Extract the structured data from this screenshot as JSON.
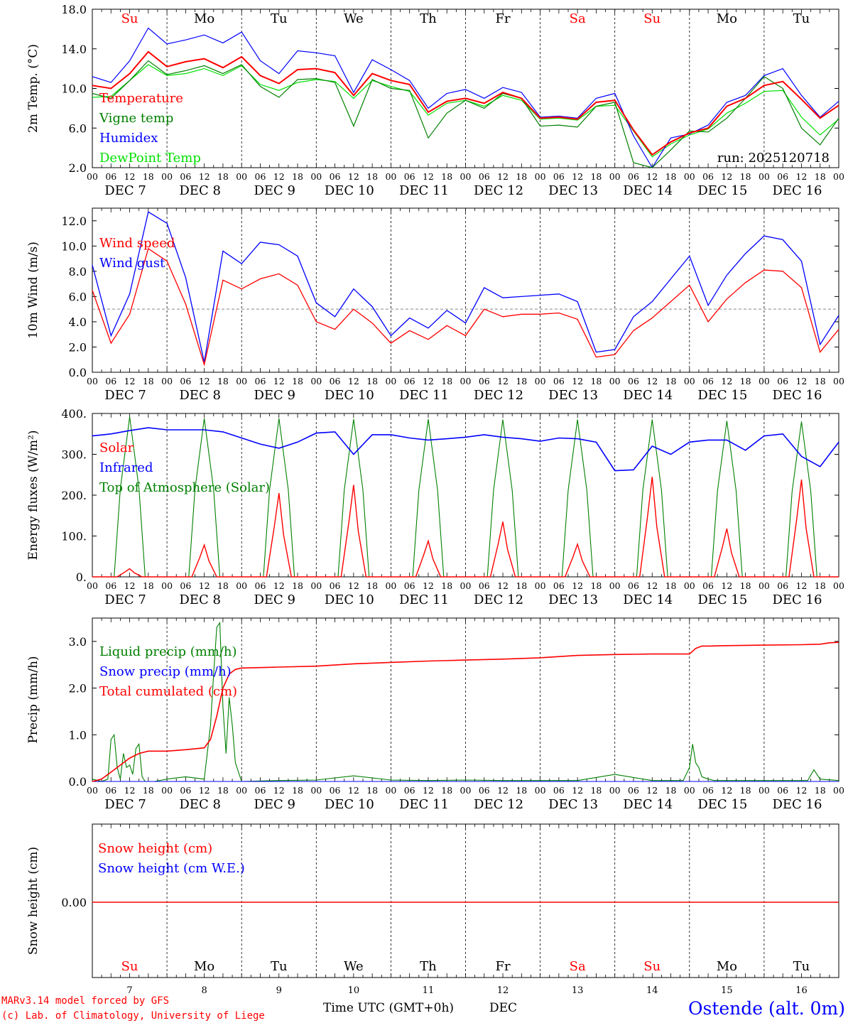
{
  "footer": {
    "model_line": "MARv3.14 model forced by GFS",
    "copyright_line": "(c) Lab. of Climatology, University of Liege",
    "xlabel": "Time UTC (GMT+0h)",
    "month": "DEC",
    "station": "Ostende (alt. 0m)"
  },
  "run_label": "run: 2025120718",
  "axis": {
    "hour_ticks": [
      "00",
      "06",
      "12",
      "18"
    ],
    "days": [
      {
        "label": "DEC  7",
        "abbr": "Su",
        "num": "7",
        "weekend": true
      },
      {
        "label": "DEC  8",
        "abbr": "Mo",
        "num": "8",
        "weekend": false
      },
      {
        "label": "DEC  9",
        "abbr": "Tu",
        "num": "9",
        "weekend": false
      },
      {
        "label": "DEC 10",
        "abbr": "We",
        "num": "10",
        "weekend": false
      },
      {
        "label": "DEC 11",
        "abbr": "Th",
        "num": "11",
        "weekend": false
      },
      {
        "label": "DEC 12",
        "abbr": "Fr",
        "num": "12",
        "weekend": false
      },
      {
        "label": "DEC 13",
        "abbr": "Sa",
        "num": "13",
        "weekend": true
      },
      {
        "label": "DEC 14",
        "abbr": "Su",
        "num": "14",
        "weekend": true
      },
      {
        "label": "DEC 15",
        "abbr": "Mo",
        "num": "15",
        "weekend": false
      },
      {
        "label": "DEC 16",
        "abbr": "Tu",
        "num": "16",
        "weekend": false
      }
    ],
    "weekend_color": "#ff0000",
    "weekday_color": "#000000"
  },
  "chart_data": [
    {
      "id": "temp",
      "type": "line",
      "ylabel": "2m Temp. (°C)",
      "ylim": [
        2,
        18
      ],
      "yticks": [
        "2.0",
        "6.0",
        "10.0",
        "14.0",
        "18.0"
      ],
      "x_hours": [
        0,
        6,
        12,
        18,
        24,
        30,
        36,
        42,
        48,
        54,
        60,
        66,
        72,
        78,
        84,
        90,
        96,
        102,
        108,
        114,
        120,
        126,
        132,
        138,
        144,
        150,
        156,
        162,
        168,
        174,
        180,
        186,
        192,
        198,
        204,
        210,
        216,
        222,
        228,
        234,
        240
      ],
      "series": [
        {
          "name": "Temperature",
          "color": "#ff0000",
          "values": [
            10.3,
            10.0,
            11.5,
            13.7,
            12.2,
            12.7,
            13.0,
            12.1,
            13.2,
            11.3,
            10.5,
            11.9,
            12.0,
            11.6,
            9.3,
            11.5,
            10.8,
            10.4,
            7.6,
            8.7,
            9.0,
            8.5,
            9.6,
            9.0,
            7.0,
            7.1,
            6.9,
            8.6,
            8.8,
            5.8,
            3.3,
            4.6,
            5.5,
            6.0,
            8.2,
            9.0,
            10.3,
            10.7,
            8.9,
            7.0,
            8.3
          ]
        },
        {
          "name": "Vigne temp",
          "color": "#008000",
          "values": [
            9.5,
            9.0,
            10.8,
            12.8,
            11.4,
            11.8,
            12.3,
            11.5,
            12.4,
            10.2,
            9.1,
            10.9,
            11.0,
            10.6,
            6.2,
            10.9,
            10.0,
            9.8,
            5.0,
            7.5,
            8.8,
            8.0,
            9.5,
            9.0,
            6.2,
            6.3,
            6.1,
            8.2,
            8.6,
            2.5,
            2.0,
            3.8,
            5.7,
            5.6,
            7.0,
            9.0,
            11.2,
            10.0,
            6.0,
            4.3,
            7.0
          ]
        },
        {
          "name": "Humidex",
          "color": "#0000ff",
          "values": [
            11.2,
            10.6,
            12.8,
            16.1,
            14.5,
            14.9,
            15.4,
            14.6,
            15.7,
            12.8,
            11.5,
            13.8,
            13.6,
            13.3,
            9.6,
            12.9,
            11.9,
            10.8,
            8.0,
            9.5,
            9.9,
            9.0,
            10.1,
            9.6,
            7.1,
            7.2,
            7.0,
            9.0,
            9.5,
            5.2,
            2.0,
            5.0,
            5.4,
            6.3,
            8.6,
            9.3,
            11.3,
            12.0,
            9.3,
            7.1,
            8.7
          ]
        },
        {
          "name": "DewPoint Temp",
          "color": "#00e000",
          "values": [
            9.1,
            9.2,
            10.8,
            12.4,
            11.3,
            11.5,
            12.0,
            11.3,
            12.3,
            10.4,
            9.8,
            10.6,
            10.9,
            10.7,
            9.0,
            10.8,
            10.2,
            9.7,
            7.3,
            8.5,
            8.8,
            8.2,
            9.3,
            8.8,
            6.9,
            7.0,
            6.8,
            8.2,
            8.3,
            5.7,
            3.1,
            4.4,
            5.3,
            5.9,
            7.5,
            8.5,
            9.7,
            9.8,
            7.1,
            5.3,
            6.9
          ]
        }
      ]
    },
    {
      "id": "wind",
      "type": "line",
      "ylabel": "10m Wind (m/s)",
      "ylim": [
        0,
        13
      ],
      "yticks": [
        "0.0",
        "2.0",
        "4.0",
        "6.0",
        "8.0",
        "10.0",
        "12.0"
      ],
      "reference_line": 5,
      "x_hours": [
        0,
        6,
        12,
        18,
        24,
        30,
        36,
        42,
        48,
        54,
        60,
        66,
        72,
        78,
        84,
        90,
        96,
        102,
        108,
        114,
        120,
        126,
        132,
        138,
        144,
        150,
        156,
        162,
        168,
        174,
        180,
        186,
        192,
        198,
        204,
        210,
        216,
        222,
        228,
        234,
        240
      ],
      "series": [
        {
          "name": "Wind speed",
          "color": "#ff0000",
          "values": [
            6.5,
            2.3,
            4.6,
            9.8,
            8.8,
            5.4,
            0.6,
            7.3,
            6.6,
            7.4,
            7.8,
            6.9,
            4.0,
            3.4,
            5.0,
            3.9,
            2.3,
            3.3,
            2.6,
            3.7,
            2.9,
            5.0,
            4.4,
            4.6,
            4.6,
            4.7,
            4.2,
            1.2,
            1.4,
            3.3,
            4.3,
            5.6,
            6.9,
            4.0,
            5.8,
            7.1,
            8.1,
            8.0,
            6.7,
            1.6,
            3.4
          ]
        },
        {
          "name": "Wind gust",
          "color": "#0000ff",
          "values": [
            8.5,
            2.9,
            6.2,
            12.7,
            11.8,
            7.5,
            0.8,
            9.6,
            8.6,
            10.3,
            10.1,
            9.2,
            5.5,
            4.4,
            6.6,
            5.2,
            2.9,
            4.3,
            3.5,
            4.9,
            3.9,
            6.7,
            5.9,
            6.0,
            6.1,
            6.2,
            5.6,
            1.6,
            1.8,
            4.4,
            5.6,
            7.4,
            9.2,
            5.3,
            7.7,
            9.4,
            10.8,
            10.5,
            8.8,
            2.2,
            4.5
          ]
        }
      ]
    },
    {
      "id": "energy",
      "type": "line",
      "ylabel": "Energy fluxes (W/m²)",
      "ylim": [
        0,
        400
      ],
      "yticks": [
        "0.",
        "100.",
        "200.",
        "300.",
        "400."
      ],
      "daily_peaks": {
        "solar": [
          20,
          78,
          205,
          225,
          88,
          135,
          80,
          245,
          118,
          238
        ],
        "toa_solar": [
          392,
          388,
          388,
          386,
          386,
          385,
          385,
          385,
          382,
          380
        ]
      },
      "infrared_hours": [
        0,
        6,
        12,
        18,
        24,
        30,
        36,
        42,
        48,
        54,
        60,
        66,
        72,
        78,
        84,
        90,
        96,
        102,
        108,
        114,
        120,
        126,
        132,
        138,
        144,
        150,
        156,
        162,
        168,
        174,
        180,
        186,
        192,
        198,
        204,
        210,
        216,
        222,
        228,
        234,
        240
      ],
      "infrared_values": [
        345,
        350,
        358,
        365,
        360,
        360,
        360,
        355,
        340,
        325,
        315,
        330,
        352,
        355,
        300,
        348,
        348,
        340,
        335,
        338,
        342,
        348,
        342,
        338,
        332,
        340,
        338,
        330,
        260,
        262,
        320,
        300,
        330,
        335,
        335,
        310,
        345,
        350,
        295,
        270,
        330
      ],
      "series": [
        {
          "name": "Solar",
          "color": "#ff0000"
        },
        {
          "name": "Infrared",
          "color": "#0000ff"
        },
        {
          "name": "Top of Atmosphere (Solar)",
          "color": "#008000"
        }
      ]
    },
    {
      "id": "precip",
      "type": "line",
      "ylabel": "Precip (mm/h)",
      "ylim": [
        0,
        3.5
      ],
      "yticks": [
        "0.0",
        "1.0",
        "2.0",
        "3.0"
      ],
      "liquid_hours": [
        0,
        3,
        5,
        6,
        7,
        8,
        9,
        10,
        11,
        12,
        13,
        14,
        15,
        16,
        17,
        18,
        20,
        24,
        30,
        36,
        38,
        39,
        40,
        41,
        42,
        43,
        44,
        45,
        46,
        48,
        60,
        72,
        84,
        96,
        108,
        120,
        132,
        144,
        156,
        168,
        180,
        190,
        192,
        193,
        194,
        195,
        196,
        198,
        200,
        210,
        220,
        230,
        232,
        234,
        240
      ],
      "liquid_values": [
        0.05,
        0,
        0.05,
        0.9,
        1.0,
        0.3,
        0.05,
        0.6,
        0.3,
        0.35,
        0.15,
        0.7,
        0.8,
        0.1,
        0,
        0,
        0,
        0.05,
        0.1,
        0.05,
        1.2,
        2.3,
        3.3,
        3.4,
        1.6,
        0.6,
        1.8,
        1.2,
        0.4,
        0,
        0.02,
        0.03,
        0.12,
        0.03,
        0.02,
        0.03,
        0.02,
        0.02,
        0.02,
        0.15,
        0.02,
        0.02,
        0.3,
        0.8,
        0.4,
        0.3,
        0.1,
        0.05,
        0.02,
        0.02,
        0.02,
        0.02,
        0.25,
        0.05,
        0.02
      ],
      "cum_hours": [
        0,
        3,
        6,
        9,
        12,
        15,
        18,
        24,
        30,
        36,
        38,
        40,
        42,
        44,
        46,
        48,
        60,
        72,
        84,
        96,
        108,
        120,
        132,
        144,
        156,
        168,
        180,
        192,
        194,
        196,
        198,
        204,
        216,
        228,
        234,
        237,
        240
      ],
      "cum_values": [
        0,
        0.05,
        0.2,
        0.35,
        0.5,
        0.6,
        0.65,
        0.65,
        0.68,
        0.72,
        0.9,
        1.4,
        2.0,
        2.3,
        2.4,
        2.43,
        2.45,
        2.47,
        2.52,
        2.55,
        2.58,
        2.6,
        2.62,
        2.65,
        2.7,
        2.72,
        2.73,
        2.73,
        2.85,
        2.9,
        2.9,
        2.91,
        2.92,
        2.93,
        2.94,
        2.97,
        2.98
      ],
      "series": [
        {
          "name": "Liquid precip (mm/h)",
          "color": "#008000"
        },
        {
          "name": "Snow precip (mm/h)",
          "color": "#0000ff"
        },
        {
          "name": "Total cumulated (cm)",
          "color": "#ff0000"
        }
      ]
    },
    {
      "id": "snow",
      "type": "line",
      "ylabel": "Snow height (cm)",
      "yticks": [
        "0.00"
      ],
      "value": 0,
      "series": [
        {
          "name": "Snow height (cm)",
          "color": "#ff0000"
        },
        {
          "name": "Snow height (cm W.E.)",
          "color": "#0000ff"
        }
      ]
    }
  ]
}
